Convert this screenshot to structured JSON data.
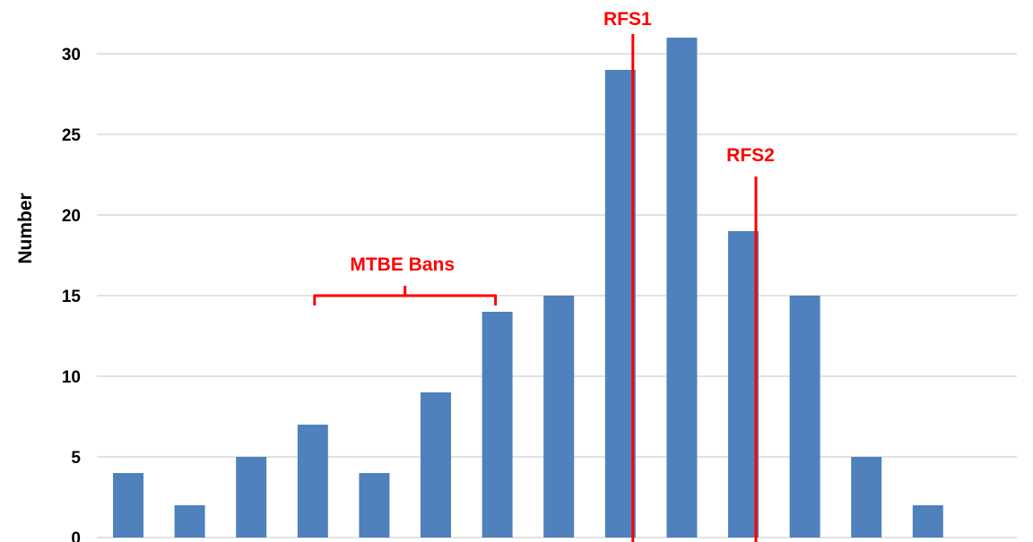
{
  "chart_data": {
    "type": "bar",
    "ylabel": "Number",
    "xlabel": "",
    "ylim": [
      0,
      33
    ],
    "yticks": [
      0,
      5,
      10,
      15,
      20,
      25,
      30
    ],
    "grid": true,
    "legend": "none",
    "series": [
      {
        "values": [
          4,
          2,
          5,
          7,
          4,
          9,
          14,
          15,
          29,
          31,
          19,
          15,
          5,
          2
        ],
        "color": "#4f81bd"
      }
    ],
    "annotations": {
      "bracket": {
        "text": "MTBE Bans",
        "from_bar": 3,
        "to_bar": 6,
        "color": "#ff0000"
      },
      "vlines": [
        {
          "text": "RFS1",
          "at_bar": 8,
          "color": "#ff0000"
        },
        {
          "text": "RFS2",
          "at_bar": 10,
          "color": "#ff0000"
        }
      ]
    },
    "colors": {
      "grid": "#d9d9d9",
      "bar": "#4f81bd",
      "annotation": "#ff0000"
    }
  }
}
